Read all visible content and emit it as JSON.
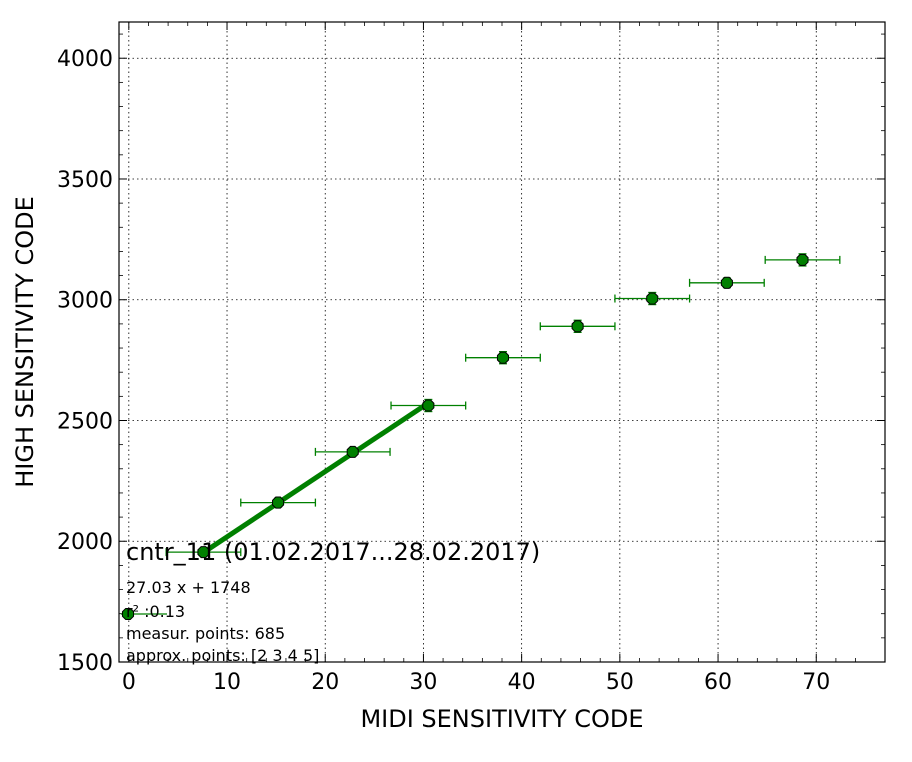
{
  "chart_data": {
    "type": "scatter",
    "xlabel": "MIDI SENSITIVITY CODE",
    "ylabel": "HIGH SENSITIVITY CODE",
    "xlim": [
      -1,
      77
    ],
    "ylim": [
      1500,
      4150
    ],
    "xticks": [
      0,
      10,
      20,
      30,
      40,
      50,
      60,
      70
    ],
    "yticks": [
      1500,
      2000,
      2500,
      3000,
      3500,
      4000
    ],
    "grid": true,
    "series": [
      {
        "marker": "octagon",
        "color": "#008000",
        "points": [
          {
            "x": 7.6,
            "y": 1955,
            "xerr": 3.8,
            "yerr": 12
          },
          {
            "x": 15.2,
            "y": 2160,
            "xerr": 3.8,
            "yerr": 18
          },
          {
            "x": 22.8,
            "y": 2370,
            "xerr": 3.8,
            "yerr": 15
          },
          {
            "x": 30.5,
            "y": 2562,
            "xerr": 3.8,
            "yerr": 25
          },
          {
            "x": 38.1,
            "y": 2760,
            "xerr": 3.8,
            "yerr": 25
          },
          {
            "x": 45.7,
            "y": 2890,
            "xerr": 3.8,
            "yerr": 25
          },
          {
            "x": 53.3,
            "y": 3005,
            "xerr": 3.8,
            "yerr": 25
          },
          {
            "x": 60.9,
            "y": 3070,
            "xerr": 3.8,
            "yerr": 20
          },
          {
            "x": 68.6,
            "y": 3165,
            "xerr": 3.8,
            "yerr": 25
          }
        ]
      }
    ],
    "fit": {
      "slope": 27.03,
      "intercept": 1748,
      "x_range": [
        7.6,
        30.5
      ],
      "color": "#008000"
    },
    "annotation": {
      "title": "cntr_11 (01.02.2017...28.02.2017)",
      "equation": "27.03 x + 1748",
      "r2_label": "r² :0.13",
      "points_label": "measur. points: 685",
      "approx_label": "approx. points: [2 3 4 5]"
    }
  }
}
